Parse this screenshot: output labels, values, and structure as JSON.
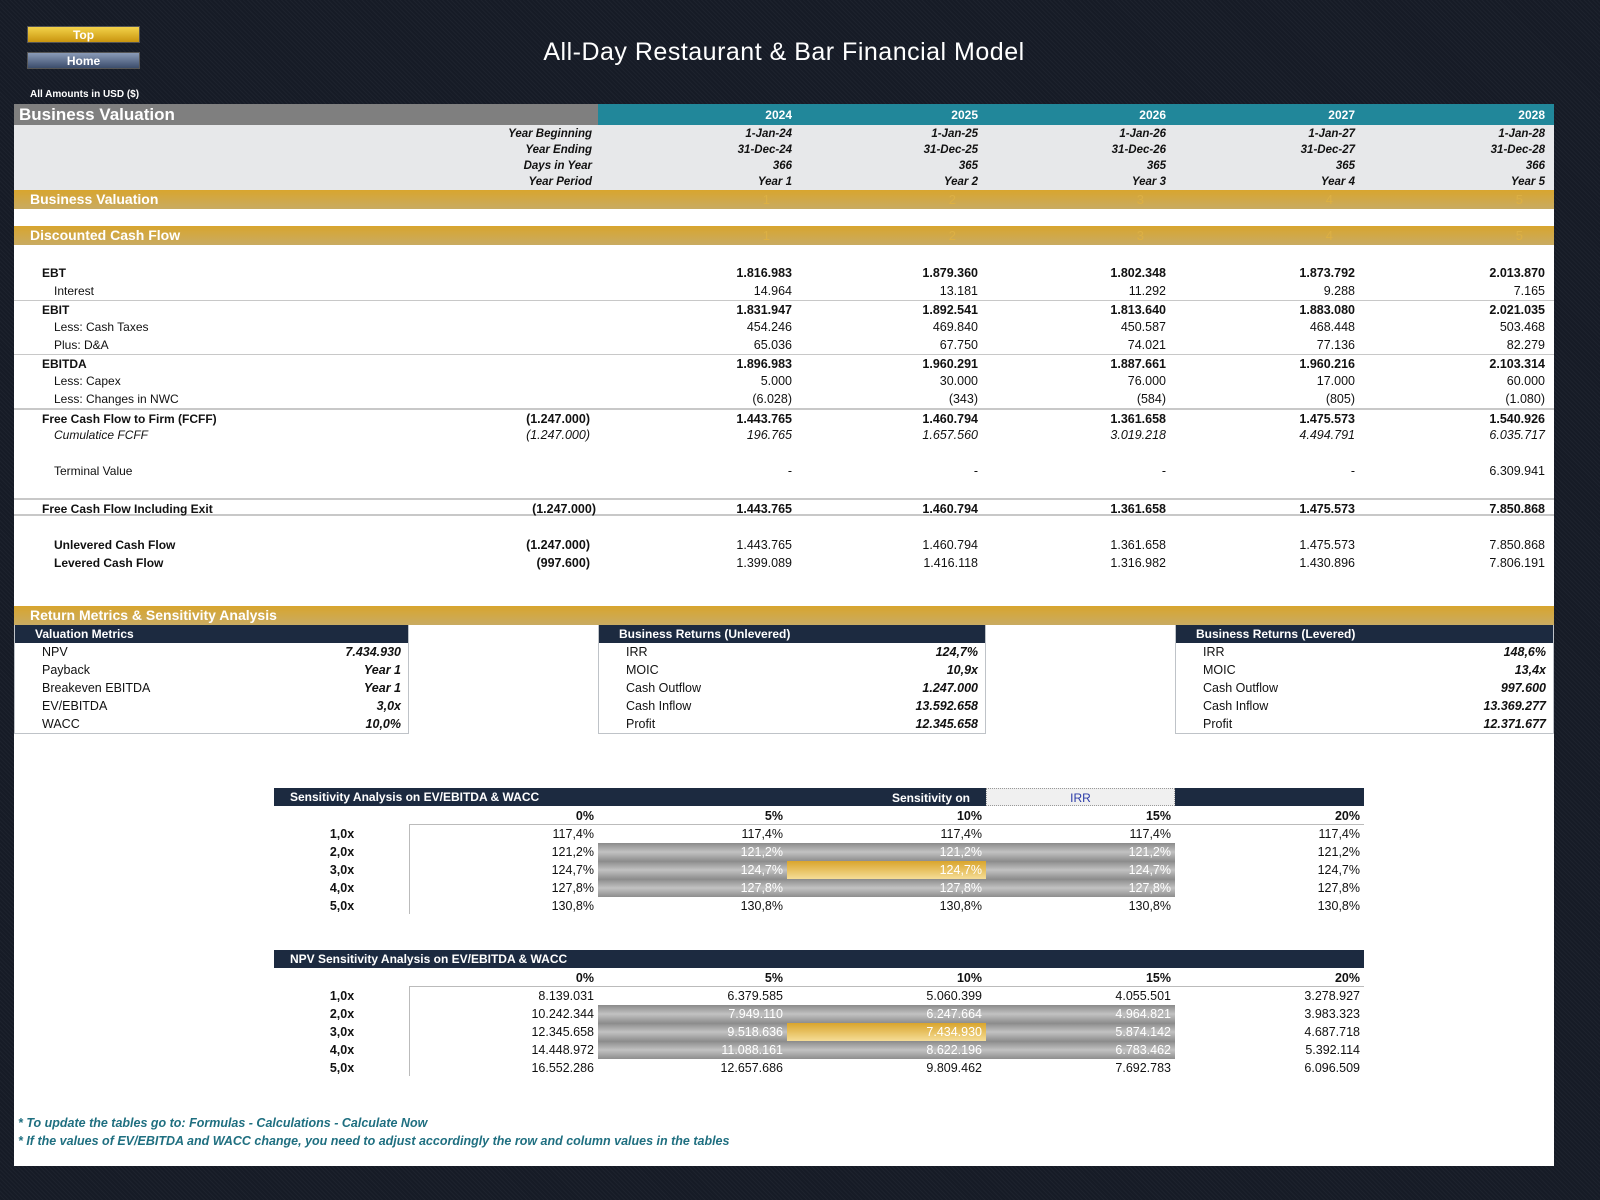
{
  "nav": {
    "top_label": "Top",
    "home_label": "Home"
  },
  "title": "All-Day Restaurant & Bar Financial Model",
  "units": "All Amounts in  USD ($)",
  "header": {
    "section": "Business Valuation",
    "years": [
      "2024",
      "2025",
      "2026",
      "2027",
      "2028"
    ],
    "info_rows": [
      {
        "label": "Year Beginning",
        "values": [
          "1-Jan-24",
          "1-Jan-25",
          "1-Jan-26",
          "1-Jan-27",
          "1-Jan-28"
        ]
      },
      {
        "label": "Year Ending",
        "values": [
          "31-Dec-24",
          "31-Dec-25",
          "31-Dec-26",
          "31-Dec-27",
          "31-Dec-28"
        ]
      },
      {
        "label": "Days in Year",
        "values": [
          "366",
          "365",
          "365",
          "365",
          "366"
        ]
      },
      {
        "label": "Year Period",
        "values": [
          "Year 1",
          "Year 2",
          "Year 3",
          "Year 4",
          "Year 5"
        ]
      }
    ]
  },
  "bands": {
    "business_valuation": "Business Valuation",
    "dcf": "Discounted Cash Flow",
    "return_metrics": "Return Metrics & Sensitivity Analysis",
    "period_numbers": [
      "1",
      "2",
      "3",
      "4",
      "5"
    ]
  },
  "dcf_rows": [
    {
      "label": "EBT",
      "style": "bold",
      "pre": "",
      "values": [
        "1.816.983",
        "1.879.360",
        "1.802.348",
        "1.873.792",
        "2.013.870"
      ]
    },
    {
      "label": "Interest",
      "style": "sub",
      "pre": "",
      "values": [
        "14.964",
        "13.181",
        "11.292",
        "9.288",
        "7.165"
      ]
    },
    {
      "label": "EBIT",
      "style": "bold",
      "pre": "",
      "values": [
        "1.831.947",
        "1.892.541",
        "1.813.640",
        "1.883.080",
        "2.021.035"
      ]
    },
    {
      "label": "Less: Cash Taxes",
      "style": "sub",
      "pre": "",
      "values": [
        "454.246",
        "469.840",
        "450.587",
        "468.448",
        "503.468"
      ]
    },
    {
      "label": "Plus: D&A",
      "style": "sub",
      "pre": "",
      "values": [
        "65.036",
        "67.750",
        "74.021",
        "77.136",
        "82.279"
      ]
    },
    {
      "label": "EBITDA",
      "style": "bold",
      "pre": "",
      "values": [
        "1.896.983",
        "1.960.291",
        "1.887.661",
        "1.960.216",
        "2.103.314"
      ]
    },
    {
      "label": "Less: Capex",
      "style": "sub",
      "pre": "",
      "values": [
        "5.000",
        "30.000",
        "76.000",
        "17.000",
        "60.000"
      ]
    },
    {
      "label": "Less: Changes in NWC",
      "style": "sub",
      "pre": "",
      "values": [
        "(6.028)",
        "(343)",
        "(584)",
        "(805)",
        "(1.080)"
      ]
    },
    {
      "label": "Free Cash Flow to Firm (FCFF)",
      "style": "bold",
      "pre": "(1.247.000)",
      "values": [
        "1.443.765",
        "1.460.794",
        "1.361.658",
        "1.475.573",
        "1.540.926"
      ]
    },
    {
      "label": "Cumulatice FCFF",
      "style": "italic",
      "pre": "(1.247.000)",
      "values": [
        "196.765",
        "1.657.560",
        "3.019.218",
        "4.494.791",
        "6.035.717"
      ]
    },
    {
      "label": "Terminal Value",
      "style": "sub",
      "pre": "",
      "values": [
        "-",
        "-",
        "-",
        "-",
        "6.309.941"
      ]
    },
    {
      "label": "Free Cash Flow Including Exit",
      "style": "bold",
      "pre": "(1.247.000)",
      "values": [
        "1.443.765",
        "1.460.794",
        "1.361.658",
        "1.475.573",
        "7.850.868"
      ]
    },
    {
      "label": "Unlevered Cash Flow",
      "style": "subbold",
      "pre": "(1.247.000)",
      "values": [
        "1.443.765",
        "1.460.794",
        "1.361.658",
        "1.475.573",
        "7.850.868"
      ]
    },
    {
      "label": "Levered Cash Flow",
      "style": "subbold",
      "pre": "(997.600)",
      "values": [
        "1.399.089",
        "1.416.118",
        "1.316.982",
        "1.430.896",
        "7.806.191"
      ]
    }
  ],
  "metrics": [
    {
      "title": "Valuation Metrics",
      "items": [
        {
          "k": "NPV",
          "v": "7.434.930"
        },
        {
          "k": "Payback",
          "v": "Year 1"
        },
        {
          "k": "Breakeven EBITDA",
          "v": "Year 1"
        },
        {
          "k": "EV/EBITDA",
          "v": "3,0x"
        },
        {
          "k": "WACC",
          "v": "10,0%"
        }
      ]
    },
    {
      "title": "Business Returns (Unlevered)",
      "items": [
        {
          "k": "IRR",
          "v": "124,7%"
        },
        {
          "k": "MOIC",
          "v": "10,9x"
        },
        {
          "k": "Cash Outflow",
          "v": "1.247.000"
        },
        {
          "k": "Cash Inflow",
          "v": "13.592.658"
        },
        {
          "k": "Profit",
          "v": "12.345.658"
        }
      ]
    },
    {
      "title": "Business Returns (Levered)",
      "items": [
        {
          "k": "IRR",
          "v": "148,6%"
        },
        {
          "k": "MOIC",
          "v": "13,4x"
        },
        {
          "k": "Cash Outflow",
          "v": "997.600"
        },
        {
          "k": "Cash Inflow",
          "v": "13.369.277"
        },
        {
          "k": "Profit",
          "v": "12.371.677"
        }
      ]
    }
  ],
  "sensitivity": [
    {
      "title": "Sensitivity Analysis on EV/EBITDA & WACC",
      "sens_on_label": "Sensitivity on",
      "sens_on_value": "IRR",
      "cols": [
        "0%",
        "5%",
        "10%",
        "15%",
        "20%"
      ],
      "rows": [
        "1,0x",
        "2,0x",
        "3,0x",
        "4,0x",
        "5,0x"
      ],
      "cells": [
        [
          "117,4%",
          "117,4%",
          "117,4%",
          "117,4%",
          "117,4%"
        ],
        [
          "121,2%",
          "121,2%",
          "121,2%",
          "121,2%",
          "121,2%"
        ],
        [
          "124,7%",
          "124,7%",
          "124,7%",
          "124,7%",
          "124,7%"
        ],
        [
          "127,8%",
          "127,8%",
          "127,8%",
          "127,8%",
          "127,8%"
        ],
        [
          "130,8%",
          "130,8%",
          "130,8%",
          "130,8%",
          "130,8%"
        ]
      ]
    },
    {
      "title": "NPV Sensitivity Analysis on EV/EBITDA & WACC",
      "cols": [
        "0%",
        "5%",
        "10%",
        "15%",
        "20%"
      ],
      "rows": [
        "1,0x",
        "2,0x",
        "3,0x",
        "4,0x",
        "5,0x"
      ],
      "cells": [
        [
          "8.139.031",
          "6.379.585",
          "5.060.399",
          "4.055.501",
          "3.278.927"
        ],
        [
          "10.242.344",
          "7.949.110",
          "6.247.664",
          "4.964.821",
          "3.983.323"
        ],
        [
          "12.345.658",
          "9.518.636",
          "7.434.930",
          "5.874.142",
          "4.687.718"
        ],
        [
          "14.448.972",
          "11.088.161",
          "8.622.196",
          "6.783.462",
          "5.392.114"
        ],
        [
          "16.552.286",
          "12.657.686",
          "9.809.462",
          "7.692.783",
          "6.096.509"
        ]
      ]
    }
  ],
  "notes": [
    "* To update the tables go to: Formulas - Calculations - Calculate Now",
    "* If the values of EV/EBITDA and WACC change, you need to adjust accordingly the row and column values in the tables"
  ],
  "colors": {
    "teal": "#21879a",
    "gold": "#d8a52e",
    "navy": "#1c2a40",
    "grey": "#7f7f7f",
    "note": "#1f6f80"
  }
}
